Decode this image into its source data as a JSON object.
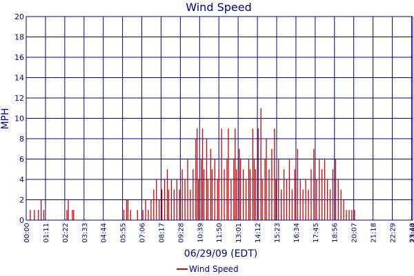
{
  "chart_data": {
    "type": "bar",
    "title": "Wind Speed",
    "xlabel": "06/29/09 (EDT)",
    "ylabel": "MPH",
    "ylim": [
      0,
      20
    ],
    "yticks": [
      "0",
      "2",
      "4",
      "6",
      "8",
      "10",
      "12",
      "14",
      "16",
      "18",
      "20"
    ],
    "xticks": [
      "00:00",
      "01:11",
      "02:22",
      "03:33",
      "04:44",
      "05:55",
      "07:06",
      "08:17",
      "09:28",
      "10:39",
      "11:50",
      "13:01",
      "14:12",
      "15:23",
      "16:34",
      "17:45",
      "18:56",
      "20:07",
      "21:18",
      "22:29",
      "23:40",
      "23:44"
    ],
    "grid": true,
    "legend_position": "bottom-center",
    "colors": {
      "series": "#cc0000",
      "grid": "#000080",
      "text": "#000080"
    },
    "series": [
      {
        "name": "Wind Speed",
        "points": [
          [
            "00:15",
            1
          ],
          [
            "00:30",
            1
          ],
          [
            "00:45",
            1
          ],
          [
            "00:55",
            2
          ],
          [
            "01:05",
            1
          ],
          [
            "02:30",
            1
          ],
          [
            "02:35",
            2
          ],
          [
            "02:50",
            1
          ],
          [
            "02:55",
            1
          ],
          [
            "06:00",
            1
          ],
          [
            "06:10",
            2
          ],
          [
            "06:15",
            2
          ],
          [
            "06:25",
            1
          ],
          [
            "06:50",
            1
          ],
          [
            "07:10",
            1
          ],
          [
            "07:20",
            2
          ],
          [
            "07:30",
            1
          ],
          [
            "07:40",
            2
          ],
          [
            "07:50",
            3
          ],
          [
            "08:00",
            4
          ],
          [
            "08:10",
            2
          ],
          [
            "08:20",
            3
          ],
          [
            "08:30",
            4
          ],
          [
            "08:40",
            5
          ],
          [
            "08:45",
            3
          ],
          [
            "08:55",
            4
          ],
          [
            "09:05",
            3
          ],
          [
            "09:15",
            4
          ],
          [
            "09:25",
            3
          ],
          [
            "09:35",
            5
          ],
          [
            "09:45",
            4
          ],
          [
            "09:55",
            6
          ],
          [
            "10:05",
            3
          ],
          [
            "10:15",
            5
          ],
          [
            "10:25",
            8
          ],
          [
            "10:30",
            9
          ],
          [
            "10:35",
            4
          ],
          [
            "10:45",
            6
          ],
          [
            "10:50",
            9
          ],
          [
            "10:55",
            5
          ],
          [
            "11:05",
            8
          ],
          [
            "11:10",
            4
          ],
          [
            "11:20",
            7
          ],
          [
            "11:25",
            5
          ],
          [
            "11:35",
            6
          ],
          [
            "11:45",
            4
          ],
          [
            "11:50",
            5
          ],
          [
            "12:00",
            9
          ],
          [
            "12:10",
            5
          ],
          [
            "12:20",
            6
          ],
          [
            "12:25",
            9
          ],
          [
            "12:35",
            4
          ],
          [
            "12:45",
            6
          ],
          [
            "12:50",
            9
          ],
          [
            "12:55",
            5
          ],
          [
            "13:05",
            7
          ],
          [
            "13:10",
            6
          ],
          [
            "13:20",
            5
          ],
          [
            "13:30",
            4
          ],
          [
            "13:40",
            6
          ],
          [
            "13:45",
            5
          ],
          [
            "13:55",
            9
          ],
          [
            "14:00",
            6
          ],
          [
            "14:05",
            5
          ],
          [
            "14:15",
            9
          ],
          [
            "14:25",
            11
          ],
          [
            "14:30",
            4
          ],
          [
            "14:40",
            6
          ],
          [
            "14:45",
            8
          ],
          [
            "14:55",
            5
          ],
          [
            "15:05",
            7
          ],
          [
            "15:15",
            9
          ],
          [
            "15:20",
            4
          ],
          [
            "15:30",
            6
          ],
          [
            "15:40",
            3
          ],
          [
            "15:50",
            5
          ],
          [
            "16:00",
            4
          ],
          [
            "16:10",
            6
          ],
          [
            "16:20",
            3
          ],
          [
            "16:30",
            5
          ],
          [
            "16:40",
            7
          ],
          [
            "16:50",
            4
          ],
          [
            "17:00",
            3
          ],
          [
            "17:10",
            4
          ],
          [
            "17:20",
            3
          ],
          [
            "17:30",
            5
          ],
          [
            "17:40",
            7
          ],
          [
            "17:50",
            4
          ],
          [
            "18:00",
            6
          ],
          [
            "18:10",
            5
          ],
          [
            "18:20",
            6
          ],
          [
            "18:30",
            4
          ],
          [
            "18:40",
            3
          ],
          [
            "18:50",
            5
          ],
          [
            "19:00",
            6
          ],
          [
            "19:10",
            4
          ],
          [
            "19:20",
            3
          ],
          [
            "19:30",
            2
          ],
          [
            "19:40",
            1
          ],
          [
            "19:50",
            1
          ],
          [
            "20:00",
            1
          ],
          [
            "20:10",
            1
          ]
        ]
      }
    ]
  }
}
